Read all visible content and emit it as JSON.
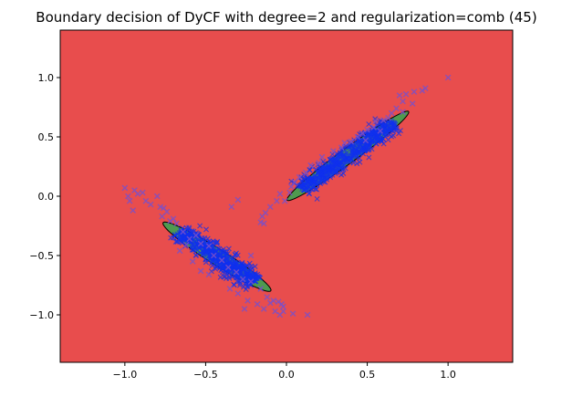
{
  "chart_data": {
    "type": "scatter",
    "title": "Boundary decision of DyCF with degree=2 and regularization=comb (45)",
    "xlabel": "",
    "ylabel": "",
    "xlim": [
      -1.4,
      1.4
    ],
    "ylim": [
      -1.4,
      1.4
    ],
    "xticks": [
      -1.0,
      -0.5,
      0.0,
      0.5,
      1.0
    ],
    "yticks": [
      -1.0,
      -0.5,
      0.0,
      0.5,
      1.0
    ],
    "xtick_labels": [
      "−1.0",
      "−0.5",
      "0.0",
      "0.5",
      "1.0"
    ],
    "ytick_labels": [
      "−1.0",
      "−0.5",
      "0.0",
      "0.5",
      "1.0"
    ],
    "grid": false,
    "legend": null,
    "colors": {
      "background_region": "#e84d4d",
      "inlier_region": "#4f9a4f",
      "points": "#1030ee",
      "outlier_markers": "#7a50c8",
      "boundary": "#000000"
    },
    "boundary_regions": [
      {
        "center": [
          0.38,
          0.34
        ],
        "semi_major": 0.53,
        "semi_minor": 0.055,
        "angle_deg": 45
      },
      {
        "center": [
          -0.43,
          -0.51
        ],
        "semi_major": 0.44,
        "semi_minor": 0.06,
        "angle_deg": -41
      }
    ],
    "clusters": [
      {
        "center": [
          0.38,
          0.34
        ],
        "slope": 1.0,
        "half_length": 0.4,
        "spread": 0.035,
        "count": 520
      },
      {
        "center": [
          -0.43,
          -0.51
        ],
        "slope": -0.9,
        "half_length": 0.32,
        "spread": 0.04,
        "count": 520
      }
    ],
    "series": [
      {
        "marker": "x",
        "points": [
          [
            1.0,
            1.0
          ],
          [
            0.86,
            0.91
          ],
          [
            0.84,
            0.89
          ],
          [
            0.79,
            0.88
          ],
          [
            0.74,
            0.86
          ],
          [
            0.7,
            0.85
          ],
          [
            0.72,
            0.8
          ],
          [
            0.78,
            0.78
          ],
          [
            0.68,
            0.74
          ],
          [
            0.72,
            0.71
          ],
          [
            0.65,
            0.7
          ],
          [
            0.63,
            0.66
          ],
          [
            0.6,
            0.64
          ],
          [
            0.55,
            0.63
          ],
          [
            0.54,
            0.58
          ],
          [
            0.5,
            0.56
          ],
          [
            0.58,
            0.55
          ],
          [
            0.47,
            0.53
          ],
          [
            0.44,
            0.5
          ],
          [
            0.49,
            0.47
          ],
          [
            0.4,
            0.46
          ],
          [
            0.36,
            0.45
          ],
          [
            0.34,
            0.41
          ],
          [
            0.29,
            0.38
          ],
          [
            0.22,
            0.33
          ],
          [
            0.2,
            0.28
          ],
          [
            0.15,
            0.26
          ],
          [
            0.12,
            0.2
          ],
          [
            0.08,
            0.16
          ],
          [
            0.05,
            0.12
          ],
          [
            0.03,
            0.08
          ],
          [
            0.02,
            0.03
          ],
          [
            -0.04,
            0.02
          ],
          [
            -0.06,
            -0.04
          ],
          [
            -0.01,
            -0.04
          ],
          [
            -0.1,
            -0.09
          ],
          [
            -0.13,
            -0.14
          ],
          [
            -0.15,
            -0.17
          ],
          [
            -0.14,
            -0.23
          ],
          [
            -0.16,
            -0.22
          ],
          [
            -0.3,
            -0.03
          ],
          [
            -0.34,
            -0.09
          ],
          [
            -0.22,
            -0.5
          ],
          [
            -1.0,
            0.07
          ],
          [
            -0.98,
            0.0
          ],
          [
            -0.97,
            -0.04
          ],
          [
            -0.95,
            -0.12
          ],
          [
            -0.94,
            0.05
          ],
          [
            -0.92,
            0.02
          ],
          [
            -0.89,
            0.03
          ],
          [
            -0.87,
            -0.04
          ],
          [
            -0.84,
            -0.07
          ],
          [
            -0.8,
            0.0
          ],
          [
            -0.78,
            -0.09
          ],
          [
            -0.76,
            -0.1
          ],
          [
            -0.74,
            -0.13
          ],
          [
            -0.77,
            -0.17
          ],
          [
            -0.72,
            -0.21
          ],
          [
            -0.7,
            -0.19
          ],
          [
            -0.68,
            -0.23
          ],
          [
            -0.64,
            -0.3
          ],
          [
            -0.6,
            -0.36
          ],
          [
            -0.56,
            -0.33
          ],
          [
            -0.53,
            -0.4
          ],
          [
            -0.48,
            -0.42
          ],
          [
            -0.45,
            -0.5
          ],
          [
            -0.4,
            -0.54
          ],
          [
            -0.36,
            -0.6
          ],
          [
            -0.31,
            -0.64
          ],
          [
            -0.27,
            -0.7
          ],
          [
            -0.22,
            -0.72
          ],
          [
            -0.16,
            -0.78
          ],
          [
            -0.12,
            -0.85
          ],
          [
            -0.1,
            -0.9
          ],
          [
            -0.18,
            -0.91
          ],
          [
            -0.08,
            -0.88
          ],
          [
            -0.05,
            -0.89
          ],
          [
            -0.03,
            -0.91
          ],
          [
            -0.02,
            -0.93
          ],
          [
            -0.07,
            -0.97
          ],
          [
            -0.02,
            -0.97
          ],
          [
            -0.04,
            -1.0
          ],
          [
            0.04,
            -0.99
          ],
          [
            0.13,
            -1.0
          ],
          [
            -0.35,
            -0.78
          ],
          [
            -0.3,
            -0.82
          ],
          [
            -0.24,
            -0.88
          ],
          [
            -0.14,
            -0.95
          ],
          [
            -0.26,
            -0.95
          ],
          [
            -0.53,
            -0.63
          ],
          [
            -0.48,
            -0.66
          ],
          [
            -0.58,
            -0.55
          ],
          [
            -0.66,
            -0.46
          ],
          [
            -0.62,
            -0.41
          ]
        ]
      }
    ]
  }
}
